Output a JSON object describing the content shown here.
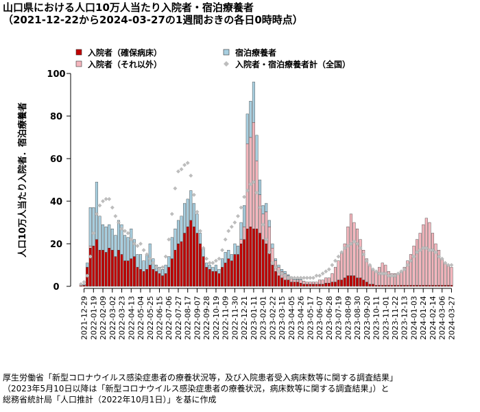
{
  "chart_data": {
    "type": "bar",
    "stacked": true,
    "title": "山口県における人口10万人当たり入院者・宿泊療養者",
    "subtitle": "（2021-12-22から2024-03-27の1週間おきの各日0時時点）",
    "y_label": "人口10万人当たり入院者．宿泊療養者",
    "source": [
      "厚生労働省「新型コロナウイルス感染症患者の療養状況等，及び入院患者受入病床数等に関する調査結果」",
      "（2023年5月10日以降は「新型コロナウイルス感染症患者の療養状況，病床数等に関する調査結果」）と",
      "総務省統計局「人口推計（2022年10月1日）」を基に作成"
    ],
    "ylim": [
      0,
      100
    ],
    "yticks": [
      0,
      20,
      40,
      60,
      80,
      100
    ],
    "categories": [
      null,
      "2021-12-29",
      null,
      null,
      "2022-01-19",
      null,
      null,
      "2022-02-09",
      null,
      null,
      "2022-03-02",
      null,
      null,
      "2022-03-23",
      null,
      null,
      "2022-04-13",
      null,
      null,
      "2022-05-04",
      null,
      null,
      "2022-05-25",
      null,
      null,
      "2022-06-15",
      null,
      null,
      "2022-07-06",
      null,
      null,
      "2022-07-27",
      null,
      null,
      "2022-08-17",
      null,
      null,
      "2022-09-07",
      null,
      null,
      "2022-09-28",
      null,
      null,
      "2022-10-19",
      null,
      null,
      "2022-11-09",
      null,
      null,
      "2022-11-30",
      null,
      null,
      "2022-12-21",
      null,
      null,
      "2023-01-11",
      null,
      null,
      "2023-02-01",
      null,
      null,
      "2023-02-22",
      null,
      null,
      "2023-03-15",
      null,
      null,
      "2023-04-05",
      null,
      null,
      "2023-04-26",
      null,
      null,
      "2023-05-17",
      null,
      null,
      "2023-06-07",
      null,
      null,
      "2023-06-28",
      null,
      null,
      "2023-07-19",
      null,
      null,
      "2023-08-09",
      null,
      null,
      "2023-08-30",
      null,
      null,
      "2023-09-20",
      null,
      null,
      "2023-10-11",
      null,
      null,
      "2023-11-01",
      null,
      null,
      "2023-11-22",
      null,
      null,
      "2023-12-13",
      null,
      null,
      "2024-01-03",
      null,
      null,
      "2024-01-24",
      null,
      null,
      "2024-02-14",
      null,
      null,
      "2024-03-06",
      null,
      null,
      "2024-03-27"
    ],
    "series": [
      {
        "name": "入院者（確保病床）",
        "type": "bar",
        "color": "#c00000",
        "values": [
          0.5,
          0.5,
          9,
          18,
          19,
          22,
          17,
          17,
          16,
          18,
          17,
          14,
          17,
          15,
          12,
          12,
          13,
          14,
          9,
          8,
          7,
          8,
          10,
          8,
          7,
          6,
          5,
          6,
          9,
          13,
          17,
          20,
          21,
          25,
          28,
          31,
          28,
          25,
          20,
          14,
          9,
          8,
          7,
          7,
          6,
          9,
          11,
          13,
          12,
          15,
          15,
          20,
          22,
          27,
          28,
          27,
          27,
          25,
          22,
          20,
          16,
          10,
          7,
          5,
          4,
          3,
          3,
          2,
          2,
          2,
          1.5,
          1,
          1,
          1,
          1,
          1,
          1,
          1,
          1.5,
          1.5,
          2,
          2,
          3,
          3,
          4,
          5,
          5,
          5,
          4,
          4,
          3,
          2,
          1,
          1,
          0.5,
          0.5,
          0.5,
          0.5,
          0.5,
          0.5,
          0.5,
          0.5,
          0.5,
          0.5,
          0.5,
          0.5,
          0.5,
          0.5,
          0.5,
          0.5,
          0.5,
          0.5,
          0.5,
          0.5,
          0.5,
          0.5,
          0.5,
          0.5,
          0.5
        ]
      },
      {
        "name": "入院者（それ以外）",
        "type": "bar",
        "color": "#f4b6bd",
        "values": [
          0,
          0,
          0,
          1,
          0,
          0,
          0,
          0,
          0,
          0,
          0,
          0,
          0,
          0,
          0,
          0,
          0,
          0,
          0,
          0,
          0,
          0,
          0,
          0,
          0,
          0,
          0,
          0,
          0,
          0,
          0,
          0,
          0,
          0,
          0,
          0,
          0,
          0,
          0,
          0,
          0,
          0,
          0,
          0,
          0,
          0,
          0,
          0,
          0,
          0,
          0,
          2,
          6,
          40,
          42,
          50,
          32,
          18,
          12,
          15,
          12,
          8,
          5,
          4,
          3,
          3,
          2,
          2,
          1,
          1,
          1.5,
          1.5,
          1,
          1,
          1,
          1,
          2,
          2,
          2.5,
          2.5,
          4,
          7,
          9,
          13,
          16,
          23,
          29,
          25,
          23,
          18,
          14,
          11,
          9,
          7,
          6.5,
          8.5,
          10.5,
          9.5,
          6.5,
          5.5,
          5.5,
          5.5,
          6.5,
          8.5,
          11.5,
          14.5,
          18.5,
          21.5,
          24.5,
          28.5,
          31.5,
          29.5,
          24.5,
          19.5,
          16.5,
          12.5,
          10.5,
          9.5,
          8.5
        ]
      },
      {
        "name": "宿泊療養者",
        "type": "bar",
        "color": "#a8cfe0",
        "values": [
          0,
          0.5,
          2,
          18,
          18,
          27,
          16,
          12,
          12,
          11,
          10,
          10,
          14,
          14,
          12,
          11,
          14,
          8,
          6,
          7,
          5,
          7,
          10,
          5,
          3,
          3,
          3,
          4,
          5,
          10,
          10,
          11,
          12,
          14,
          13,
          14,
          11,
          9,
          5,
          4,
          2,
          2,
          2,
          3,
          2,
          4,
          5,
          4,
          3,
          5,
          4,
          8,
          10,
          14,
          17,
          19,
          12,
          7,
          4,
          4,
          3,
          2,
          1,
          1,
          1,
          1,
          0.5,
          0.5,
          0.5,
          0.5,
          0.5,
          0,
          0,
          0,
          0,
          0,
          0,
          0,
          0,
          0,
          0,
          0,
          0,
          0,
          0,
          0,
          0,
          0,
          0,
          0,
          0,
          0,
          0,
          0,
          0,
          0,
          0,
          0,
          0,
          0,
          0,
          0,
          0,
          0,
          0,
          0,
          0,
          0,
          0,
          0,
          0,
          0,
          0,
          0,
          0,
          0,
          0,
          0,
          0
        ]
      },
      {
        "name": "入院者・宿泊療養者計（全国）",
        "type": "scatter",
        "color": "#bdbdbd",
        "values": [
          1,
          2,
          5,
          14,
          25,
          34,
          38,
          40,
          41,
          41,
          37,
          33,
          30,
          27,
          26,
          25,
          22,
          20,
          19,
          20,
          17,
          15,
          13,
          11,
          9,
          8,
          9,
          14,
          22,
          34,
          46,
          54,
          55,
          57,
          58,
          52,
          43,
          35,
          26,
          18,
          13,
          11,
          11,
          12,
          13,
          17,
          22,
          26,
          28,
          30,
          33,
          37,
          42,
          45,
          48,
          49,
          44,
          37,
          29,
          22,
          16,
          11,
          9,
          7,
          6,
          5,
          4,
          4,
          4,
          4,
          4,
          4,
          4,
          4,
          4,
          5,
          5,
          6,
          7,
          8,
          10,
          12,
          14,
          16,
          18,
          19,
          20,
          21,
          20,
          18,
          15,
          12,
          10,
          8,
          7,
          6,
          6,
          6,
          5,
          5,
          5,
          6,
          7,
          8,
          10,
          12,
          14,
          16,
          17,
          18,
          18,
          17,
          17,
          16,
          14,
          13,
          11,
          10,
          10
        ]
      }
    ]
  }
}
